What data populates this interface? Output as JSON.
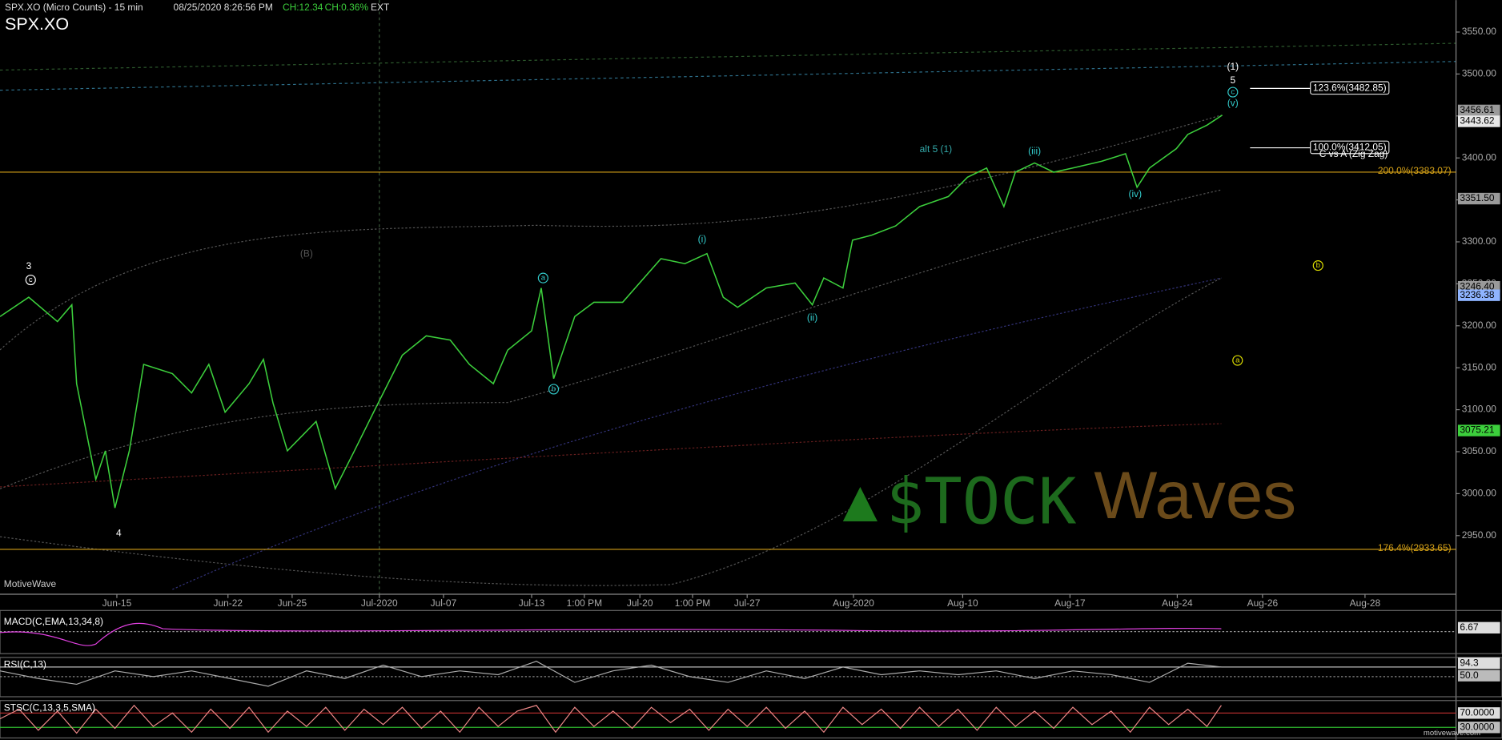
{
  "chart_data": {
    "type": "line",
    "title": "SPX.XO",
    "header": {
      "caption": "SPX.XO (Micro Counts) - 15 min",
      "datetime": "08/25/2020 8:26:56 PM",
      "change": "CH:12.34",
      "change_pct": "CH:0.36%",
      "session": "EXT"
    },
    "x": [
      0,
      30,
      60,
      75,
      80,
      100,
      110,
      120,
      135,
      150,
      180,
      200,
      218,
      235,
      260,
      275,
      285,
      300,
      330,
      350,
      370,
      390,
      420,
      445,
      470,
      490,
      515,
      530,
      555,
      565,
      578,
      600,
      620,
      650,
      690,
      715,
      738,
      755,
      770,
      800,
      830,
      848,
      860,
      880,
      890,
      910,
      935,
      960,
      990,
      1010,
      1030,
      1048,
      1060,
      1080,
      1100,
      1120,
      1150,
      1175,
      1187,
      1200,
      1228,
      1240,
      1260,
      1276
    ],
    "series": [
      {
        "name": "SPX.XO",
        "color": "#3ccf3c",
        "values": [
          3211,
          3234,
          3205,
          3225,
          3131,
          3017,
          3051,
          2983,
          3051,
          3154,
          3143,
          3120,
          3154,
          3097,
          3131,
          3160,
          3108,
          3051,
          3086,
          3006,
          3051,
          3097,
          3165,
          3188,
          3183,
          3154,
          3131,
          3171,
          3194,
          3245,
          3137,
          3211,
          3228,
          3228,
          3280,
          3274,
          3286,
          3234,
          3222,
          3245,
          3251,
          3225,
          3257,
          3245,
          3302,
          3308,
          3319,
          3342,
          3354,
          3377,
          3388,
          3342,
          3383,
          3394,
          3383,
          3388,
          3396,
          3405,
          3365,
          3388,
          3411,
          3428,
          3439,
          3451
        ]
      }
    ],
    "xlim": [
      0,
      1520
    ],
    "xticks": [
      {
        "value": 122,
        "label": "Jun-15"
      },
      {
        "value": 238,
        "label": "Jun-22"
      },
      {
        "value": 305,
        "label": "Jun-25"
      },
      {
        "value": 396,
        "label": "Jul-2020"
      },
      {
        "value": 463,
        "label": "Jul-07"
      },
      {
        "value": 555,
        "label": "Jul-13"
      },
      {
        "value": 610,
        "label": "1:00 PM"
      },
      {
        "value": 668,
        "label": "Jul-20"
      },
      {
        "value": 723,
        "label": "1:00 PM"
      },
      {
        "value": 780,
        "label": "Jul-27"
      },
      {
        "value": 891,
        "label": "Aug-2020"
      },
      {
        "value": 1005,
        "label": "Aug-10"
      },
      {
        "value": 1117,
        "label": "Aug-17"
      },
      {
        "value": 1229,
        "label": "Aug-24"
      },
      {
        "value": 1318,
        "label": "Aug-26"
      },
      {
        "value": 1425,
        "label": "Aug-28"
      }
    ],
    "ylim": [
      2903,
      3588
    ],
    "yticks": [
      {
        "value": 2950,
        "label": "2950.00"
      },
      {
        "value": 3000,
        "label": "3000.00"
      },
      {
        "value": 3050,
        "label": "3050.00"
      },
      {
        "value": 3100,
        "label": "3100.00"
      },
      {
        "value": 3150,
        "label": "3150.00"
      },
      {
        "value": 3200,
        "label": "3200.00"
      },
      {
        "value": 3250,
        "label": "3250.00"
      },
      {
        "value": 3300,
        "label": "3300.00"
      },
      {
        "value": 3350,
        "label": "3350.00"
      },
      {
        "value": 3400,
        "label": "3400.00"
      },
      {
        "value": 3450,
        "label": "3450.00"
      },
      {
        "value": 3500,
        "label": "3500.00"
      },
      {
        "value": 3550,
        "label": "3550.00"
      }
    ],
    "price_tags": [
      {
        "value": 3456.61,
        "label": "3456.61",
        "color": "#9a9a9a"
      },
      {
        "value": 3443.62,
        "label": "3443.62",
        "color": "#e8e8e8"
      },
      {
        "value": 3351.5,
        "label": "3351.50",
        "color": "#9a9a9a"
      },
      {
        "value": 3246.4,
        "label": "3246.40",
        "color": "#9a9a9a"
      },
      {
        "value": 3236.38,
        "label": "3236.38",
        "color": "#8fb4ff"
      },
      {
        "value": 3075.21,
        "label": "3075.21",
        "color": "#3ccf3c"
      }
    ],
    "fib_levels": [
      {
        "value": 3383.07,
        "label": "200.0%(3383.07)",
        "color": "#d4a017"
      },
      {
        "value": 2933.65,
        "label": "176.4%(2933.65)",
        "color": "#d4a017"
      },
      {
        "value": 3482.85,
        "label": "123.6%(3482.85)",
        "color": "#ffffff"
      },
      {
        "value": 3412.05,
        "label": "100.0%(3412.05)",
        "color": "#ffffff"
      }
    ],
    "annotations": [
      "3",
      "c",
      "4",
      "(B)",
      "a",
      "b",
      "(i)",
      "(ii)",
      "(iii)",
      "(iv)",
      "(v)",
      "c",
      "5",
      "(1)",
      "alt 5 (1)",
      "C vs A (Zig Zag)",
      "b",
      "a"
    ],
    "indicators": [
      {
        "name": "MACD(C,EMA,13,34,8)",
        "tags": [
          "6.67"
        ]
      },
      {
        "name": "RSI(C,13)",
        "tags": [
          "94.3",
          "50.0"
        ]
      },
      {
        "name": "STSC(C,13,3,5,SMA)",
        "tags": [
          "70.0000",
          "30.0000"
        ]
      }
    ],
    "watermark": [
      "$TOCK",
      "Waves"
    ],
    "source": "MotiveWave",
    "site": "motivewave.com"
  }
}
